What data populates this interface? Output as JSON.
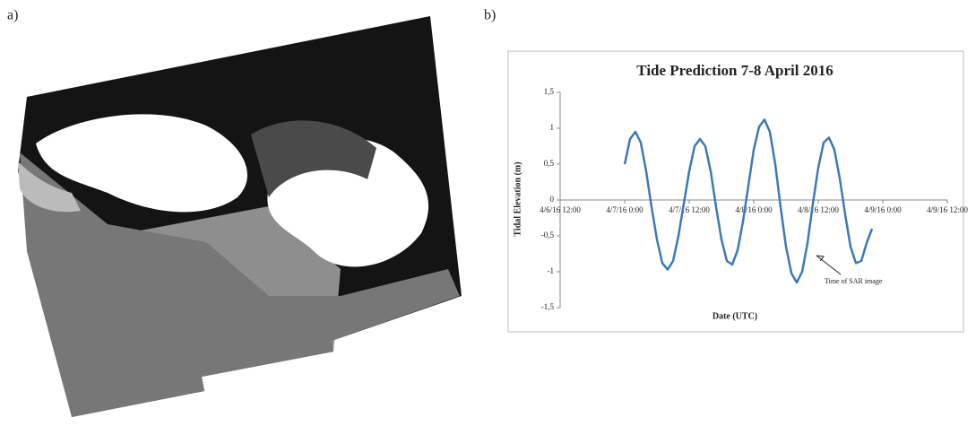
{
  "panels": {
    "a": "a)",
    "b": "b)"
  },
  "chart_data": {
    "type": "line",
    "title": "Tide Prediction 7-8 April 2016",
    "x_label": "Date (UTC)",
    "y_label": "Tidal Elevation (m)",
    "annotation": "Time of SAR image",
    "x": [
      "2016-04-07T00:00",
      "2016-04-07T01:00",
      "2016-04-07T02:00",
      "2016-04-07T03:00",
      "2016-04-07T04:00",
      "2016-04-07T05:00",
      "2016-04-07T06:00",
      "2016-04-07T07:00",
      "2016-04-07T08:00",
      "2016-04-07T09:00",
      "2016-04-07T10:00",
      "2016-04-07T11:00",
      "2016-04-07T12:00",
      "2016-04-07T13:00",
      "2016-04-07T14:00",
      "2016-04-07T15:00",
      "2016-04-07T16:00",
      "2016-04-07T17:00",
      "2016-04-07T18:00",
      "2016-04-07T19:00",
      "2016-04-07T20:00",
      "2016-04-07T21:00",
      "2016-04-07T22:00",
      "2016-04-07T23:00",
      "2016-04-08T00:00",
      "2016-04-08T01:00",
      "2016-04-08T02:00",
      "2016-04-08T03:00",
      "2016-04-08T04:00",
      "2016-04-08T05:00",
      "2016-04-08T06:00",
      "2016-04-08T07:00",
      "2016-04-08T08:00",
      "2016-04-08T09:00",
      "2016-04-08T10:00",
      "2016-04-08T11:00",
      "2016-04-08T12:00",
      "2016-04-08T13:00",
      "2016-04-08T14:00",
      "2016-04-08T15:00",
      "2016-04-08T16:00",
      "2016-04-08T17:00",
      "2016-04-08T18:00",
      "2016-04-08T19:00",
      "2016-04-08T20:00",
      "2016-04-08T21:00",
      "2016-04-08T22:00"
    ],
    "series": [
      {
        "color": "#3b79b9",
        "values": [
          0.5,
          0.85,
          0.95,
          0.8,
          0.4,
          -0.1,
          -0.55,
          -0.88,
          -0.97,
          -0.85,
          -0.5,
          -0.05,
          0.4,
          0.75,
          0.85,
          0.75,
          0.4,
          -0.1,
          -0.55,
          -0.85,
          -0.9,
          -0.7,
          -0.3,
          0.2,
          0.7,
          1.02,
          1.12,
          0.95,
          0.5,
          -0.1,
          -0.65,
          -1.02,
          -1.15,
          -1.0,
          -0.6,
          -0.05,
          0.45,
          0.8,
          0.87,
          0.7,
          0.3,
          -0.2,
          -0.65,
          -0.88,
          -0.85,
          -0.6,
          -0.4
        ]
      }
    ],
    "xlim": [
      "2016-04-06T12:00",
      "2016-04-09T12:00"
    ],
    "xticks": [
      {
        "value": "2016-04-06T12:00",
        "label": "4/6/16 12:00"
      },
      {
        "value": "2016-04-07T00:00",
        "label": "4/7/16 0:00"
      },
      {
        "value": "2016-04-07T12:00",
        "label": "4/7/16 12:00"
      },
      {
        "value": "2016-04-08T00:00",
        "label": "4/8/16 0:00"
      },
      {
        "value": "2016-04-08T12:00",
        "label": "4/8/16 12:00"
      },
      {
        "value": "2016-04-09T00:00",
        "label": "4/9/16 0:00"
      },
      {
        "value": "2016-04-09T12:00",
        "label": "4/9/16 12:00"
      }
    ],
    "ylim": [
      -1.5,
      1.5
    ],
    "yticks": [
      {
        "value": -1.5,
        "label": "-1,5"
      },
      -1,
      {
        "value": -0.5,
        "label": "-0,5"
      },
      0,
      {
        "value": 0.5,
        "label": "0,5"
      },
      1,
      {
        "value": 1.5,
        "label": "1,5"
      }
    ],
    "grid": false
  }
}
